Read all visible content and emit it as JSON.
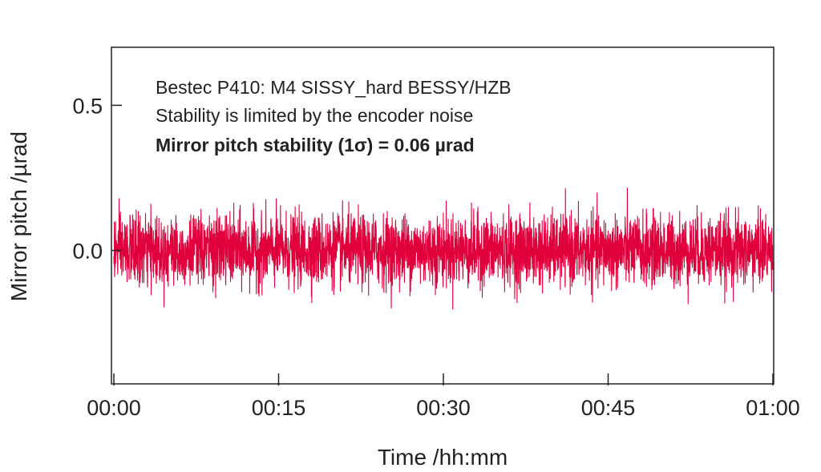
{
  "chart_data": {
    "type": "line",
    "title": "",
    "xlabel": "Time /hh:mm",
    "ylabel": "Mirror pitch /µrad",
    "x_ticks": [
      "00:00",
      "00:15",
      "00:30",
      "00:45",
      "01:00"
    ],
    "x_range_minutes": [
      0,
      60
    ],
    "y_ticks": [
      {
        "value": 0.5,
        "label": "0.5"
      },
      {
        "value": 0.0,
        "label": "0.0"
      }
    ],
    "ylim": [
      -0.46,
      0.7
    ],
    "grid": false,
    "series": [
      {
        "color": "#e0003c",
        "description_values": {
          "mean": 0.0,
          "std_dev": 0.06,
          "approx_max": 0.27,
          "approx_min": -0.29
        }
      }
    ],
    "annotations": [
      {
        "text": "Bestec P410: M4 SISSY_hard BESSY/HZB",
        "bold": false
      },
      {
        "text": "Stability is limited by the encoder noise",
        "bold": false
      },
      {
        "text": "Mirror pitch stability (1σ) = 0.06 µrad",
        "bold": true
      }
    ]
  },
  "colors": {
    "signal": "#e0003c",
    "axis": "#222222",
    "background": "#ffffff"
  }
}
